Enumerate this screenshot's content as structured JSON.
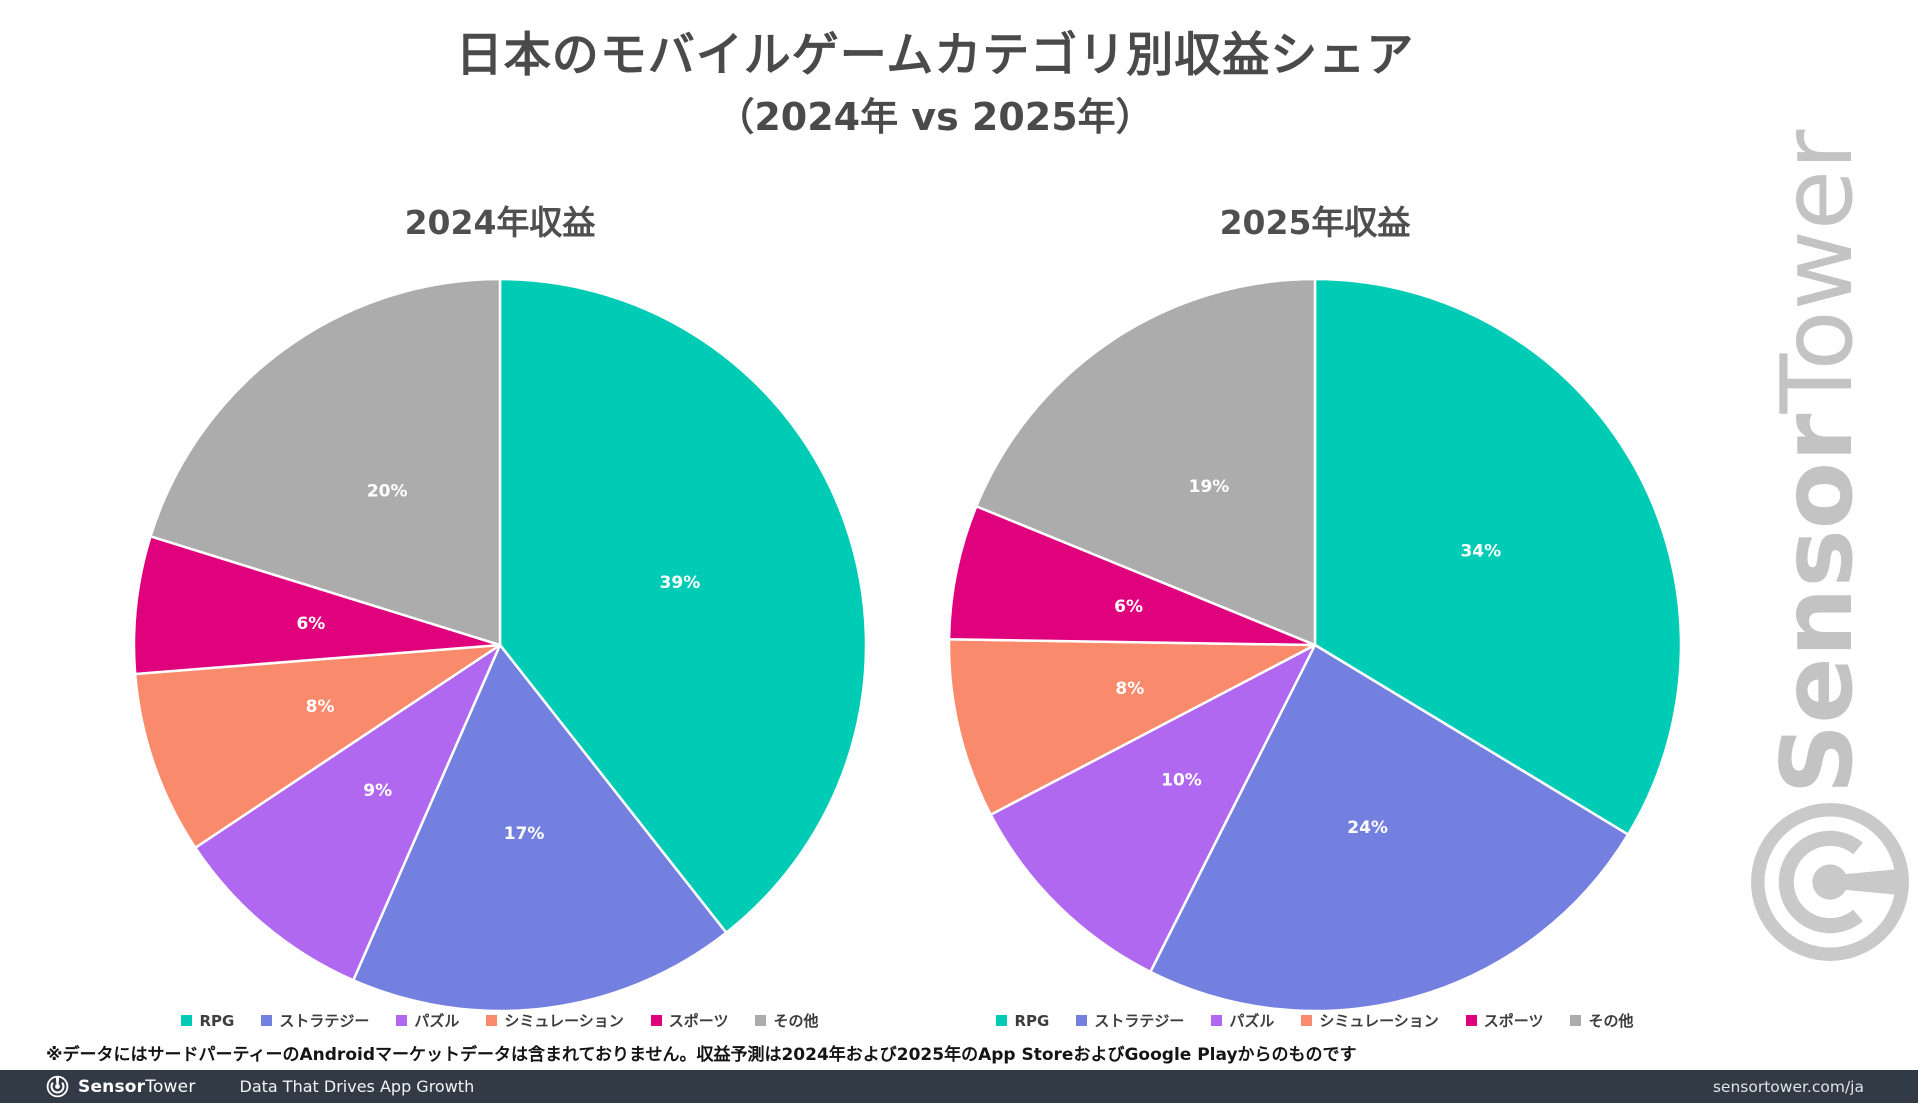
{
  "header": {
    "title": "日本のモバイルゲームカテゴリ別収益シェア",
    "subtitle": "（2024年 vs 2025年）"
  },
  "chart_data": [
    {
      "type": "pie",
      "title": "2024年収益",
      "labels": [
        "RPG",
        "ストラテジー",
        "パズル",
        "シミュレーション",
        "スポーツ",
        "その他"
      ],
      "values": [
        39,
        17,
        9,
        8,
        6,
        20
      ],
      "unit": "%",
      "colors": [
        "#00CBB5",
        "#7480DF",
        "#B168F1",
        "#FA8A6C",
        "#E0017C",
        "#ACACAC"
      ],
      "start_angle": "12-oclock",
      "direction": "clockwise",
      "data_labels": "inside-percent",
      "legend_position": "bottom"
    },
    {
      "type": "pie",
      "title": "2025年収益",
      "labels": [
        "RPG",
        "ストラテジー",
        "パズル",
        "シミュレーション",
        "スポーツ",
        "その他"
      ],
      "values": [
        34,
        24,
        10,
        8,
        6,
        19
      ],
      "unit": "%",
      "colors": [
        "#00CBB5",
        "#7480DF",
        "#B168F1",
        "#FA8A6C",
        "#E0017C",
        "#ACACAC"
      ],
      "start_angle": "12-oclock",
      "direction": "clockwise",
      "data_labels": "inside-percent",
      "legend_position": "bottom"
    }
  ],
  "footnote": "※データにはサードパーティーのAndroidマーケットデータは含まれておりません。収益予測は2024年および2025年のApp StoreおよびGoogle Playからのものです",
  "footer": {
    "brand_bold": "Sensor",
    "brand_light": "Tower",
    "tagline": "Data That Drives App Growth",
    "url": "sensortower.com/ja"
  },
  "watermark": {
    "brand_bold": "Sensor",
    "brand_light": "Tower",
    "color": "#C3C3C3"
  }
}
